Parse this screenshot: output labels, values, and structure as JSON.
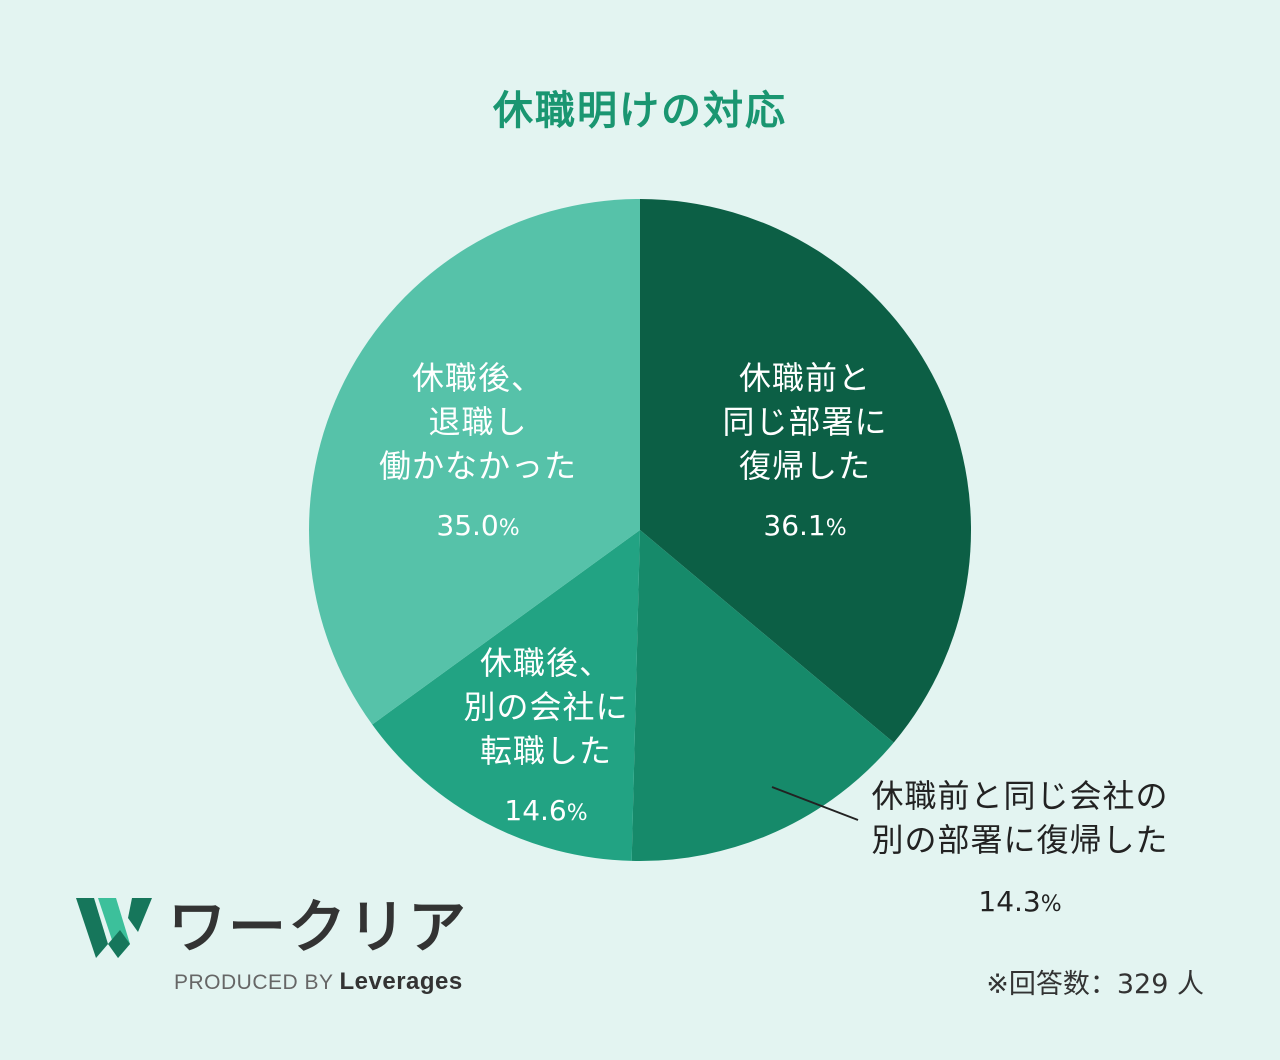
{
  "chart_data": {
    "type": "pie",
    "title": "休職明けの対応",
    "start_angle_deg": 0,
    "direction": "clockwise",
    "slices": [
      {
        "label_lines": [
          "休職前と",
          "同じ部署に",
          "復帰した"
        ],
        "value": 36.1,
        "value_text": "36.1",
        "color": "#0c5f45",
        "label_placement": "inside"
      },
      {
        "label_lines": [
          "休職前と同じ会社の",
          "別の部署に復帰した"
        ],
        "value": 14.3,
        "value_text": "14.3",
        "color": "#168a6a",
        "label_placement": "outside"
      },
      {
        "label_lines": [
          "休職後、",
          "別の会社に",
          "転職した"
        ],
        "value": 14.6,
        "value_text": "14.6",
        "color": "#22a383",
        "label_placement": "inside"
      },
      {
        "label_lines": [
          "休職後、",
          "退職し",
          "働かなかった"
        ],
        "value": 35.0,
        "value_text": "35.0",
        "color": "#56c2a9",
        "label_placement": "inside"
      }
    ],
    "percent_sign": "%"
  },
  "logo": {
    "wordmark": "ワークリア",
    "produced_by": "PRODUCED BY",
    "brand": "Leverages",
    "mark_color_dark": "#16765b",
    "mark_color_light": "#3cc09b"
  },
  "footnote": {
    "respondents": "※回答数：329 人"
  },
  "colors": {
    "background": "#e3f4f1",
    "title": "#1a9671"
  }
}
